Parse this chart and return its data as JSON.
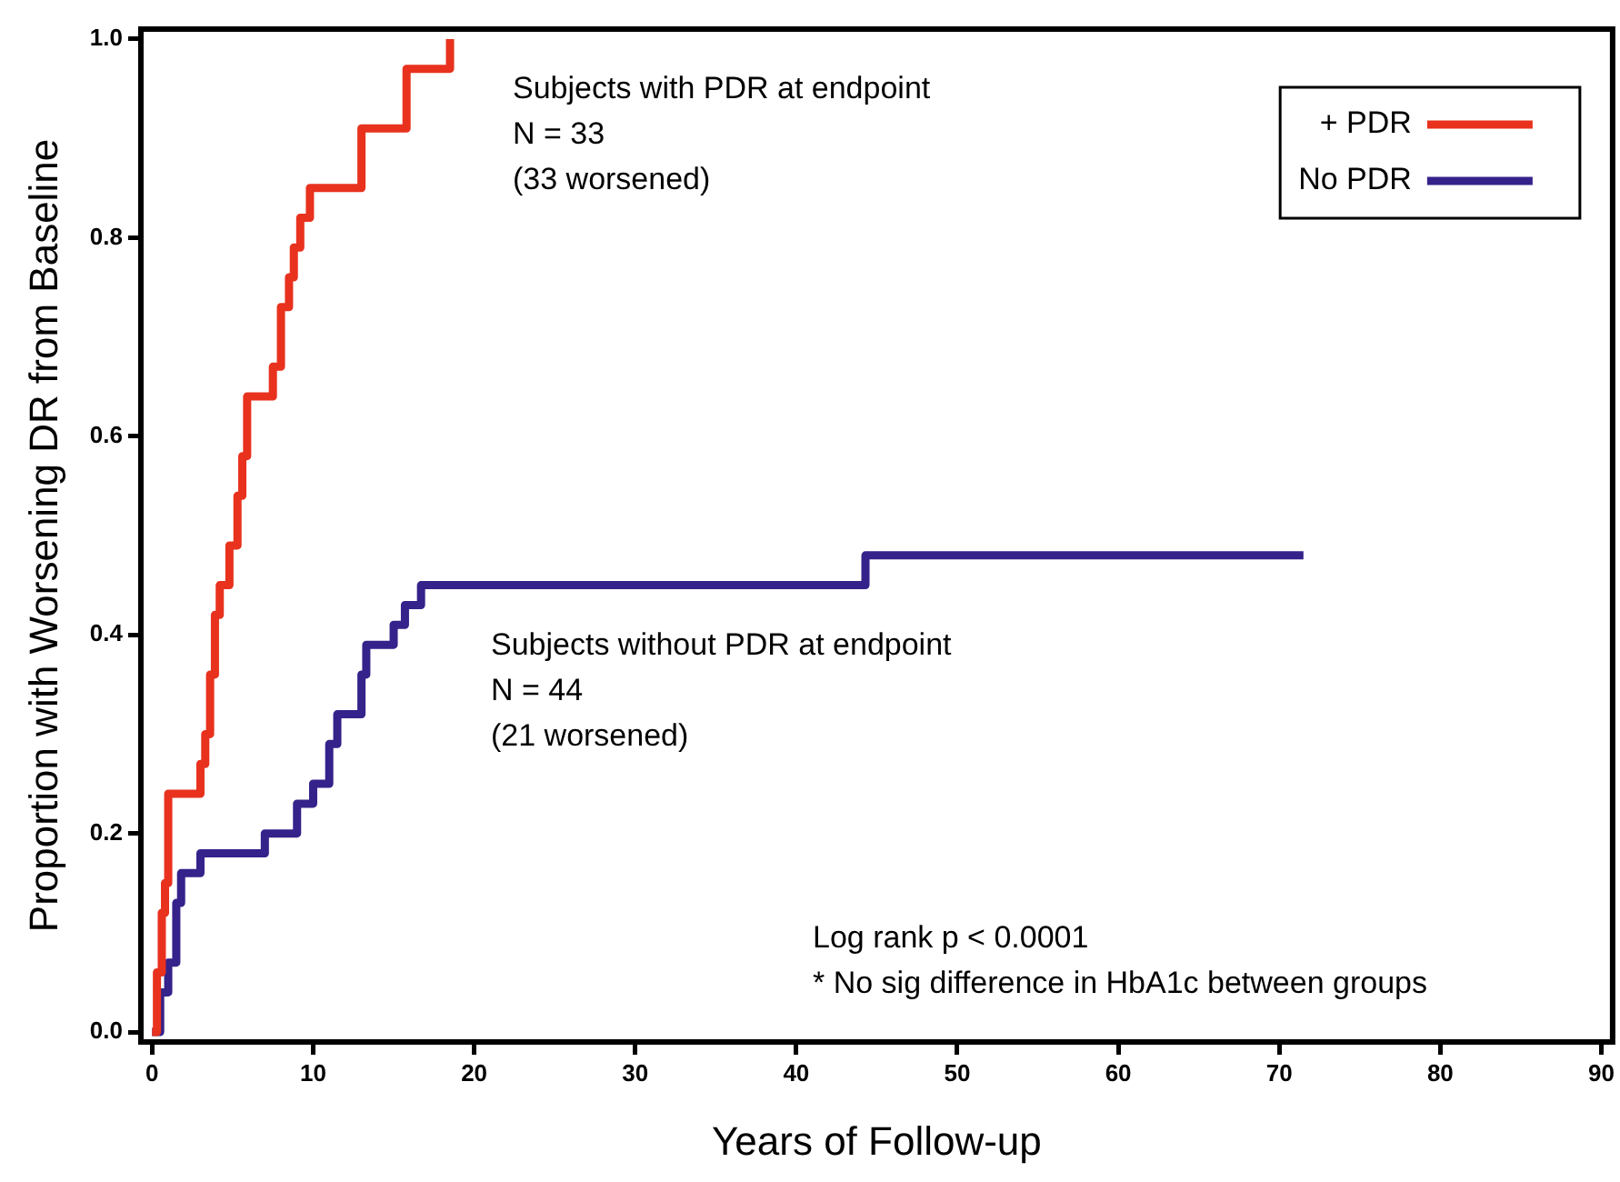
{
  "chart_data": {
    "type": "step",
    "xlabel": "Years of Follow-up",
    "ylabel": "Proportion with Worsening DR from Baseline",
    "xlim": [
      -0.7,
      90.7
    ],
    "xticks": [
      0,
      10,
      20,
      30,
      40,
      50,
      60,
      70,
      80,
      90
    ],
    "ylim": [
      -0.01,
      1.01
    ],
    "yticks": [
      {
        "value": 0,
        "label": "0.0"
      },
      {
        "value": 0.2,
        "label": "0.2"
      },
      {
        "value": 0.4,
        "label": "0.4"
      },
      {
        "value": 0.6,
        "label": "0.6"
      },
      {
        "value": 0.8,
        "label": "0.8"
      },
      {
        "value": 1,
        "label": "1.0"
      }
    ],
    "grid": false,
    "legend": "top right",
    "marker": "none",
    "line_style": "solid",
    "series": [
      {
        "name": "+ PDR",
        "color": "#e8321e",
        "x": [
          0,
          0.3,
          0.6,
          0.8,
          1,
          3,
          3.3,
          3.6,
          3.9,
          4.2,
          4.8,
          5.3,
          5.6,
          5.9,
          7.5,
          8,
          8.5,
          8.8,
          9.2,
          9.8,
          13,
          15.8,
          18.5
        ],
        "values": [
          0,
          0.06,
          0.12,
          0.15,
          0.24,
          0.27,
          0.3,
          0.36,
          0.42,
          0.45,
          0.49,
          0.54,
          0.58,
          0.64,
          0.67,
          0.73,
          0.76,
          0.79,
          0.82,
          0.85,
          0.91,
          0.97,
          1.0
        ]
      },
      {
        "name": "No PDR",
        "color": "#35228a",
        "x": [
          0,
          0.5,
          1,
          1.5,
          1.8,
          3,
          7,
          9,
          10,
          11,
          11.5,
          13,
          13.3,
          15,
          15.7,
          16.7,
          44.3,
          71.5
        ],
        "values": [
          0,
          0.04,
          0.07,
          0.13,
          0.16,
          0.18,
          0.2,
          0.23,
          0.25,
          0.29,
          0.32,
          0.36,
          0.39,
          0.41,
          0.43,
          0.45,
          0.48,
          0.48
        ]
      }
    ],
    "annotations": [
      "Subjects with PDR at endpoint\nN = 33\n(33 worsened)",
      "Subjects without PDR at endpoint\nN = 44\n(21 worsened)",
      "Log rank p < 0.0001\n* No sig difference in HbA1c between groups"
    ]
  }
}
